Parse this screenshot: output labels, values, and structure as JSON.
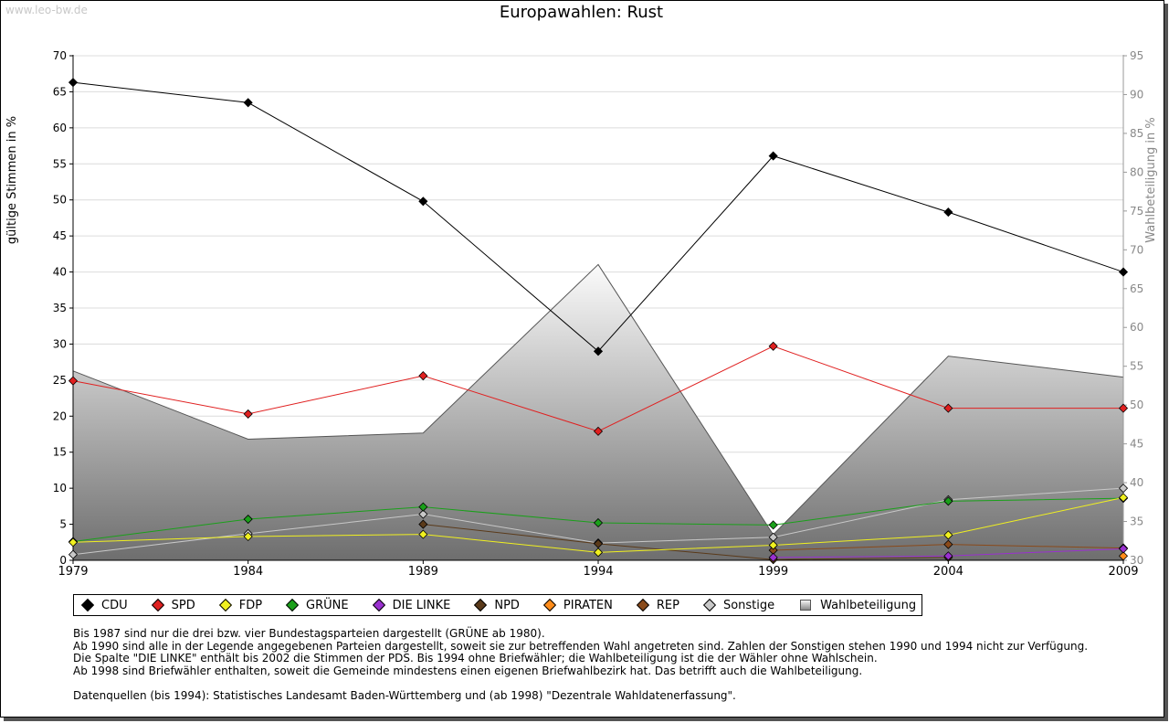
{
  "watermark": "www.leo-bw.de",
  "notes": [
    "Bis 1987 sind nur die drei bzw. vier Bundestagsparteien dargestellt (GRÜNE ab 1980).",
    "Ab 1990 sind alle in der Legende angegebenen Parteien dargestellt, soweit sie zur betreffenden Wahl angetreten sind. Zahlen der Sonstigen stehen 1990 und 1994 nicht zur Verfügung.",
    "Die Spalte \"DIE LINKE\" enthält bis 2002 die Stimmen der PDS. Bis 1994 ohne Briefwähler; die Wahlbeteiligung ist die der Wähler ohne Wahlschein.",
    "Ab 1998 sind Briefwähler enthalten, soweit die Gemeinde mindestens einen eigenen Briefwahlbezirk hat. Das betrifft auch die Wahlbeteiligung.",
    "",
    "Datenquellen (bis 1994): Statistisches Landesamt Baden-Württemberg und (ab 1998) \"Dezentrale Wahldatenerfassung\"."
  ],
  "chart_data": {
    "type": "line",
    "title": "Europawahlen: Rust",
    "ylabel": "gültige Stimmen in %",
    "y2label": "Wahlbeteiligung in %",
    "ylim": [
      0,
      70
    ],
    "y2lim": [
      30,
      95
    ],
    "yticks": [
      "0",
      "5",
      "10",
      "15",
      "20",
      "25",
      "30",
      "35",
      "40",
      "45",
      "50",
      "55",
      "60",
      "65",
      "70"
    ],
    "y2ticks": [
      "30",
      "35",
      "40",
      "45",
      "50",
      "55",
      "60",
      "65",
      "70",
      "75",
      "80",
      "85",
      "90",
      "95"
    ],
    "categories": [
      "1979",
      "1984",
      "1989",
      "1994",
      "1999",
      "2004",
      "2009"
    ],
    "series": [
      {
        "name": "CDU",
        "color": "#000000",
        "values": [
          66.3,
          63.5,
          49.8,
          29.0,
          56.1,
          48.3,
          40.0
        ]
      },
      {
        "name": "SPD",
        "color": "#e02020",
        "values": [
          24.9,
          20.3,
          25.6,
          17.9,
          29.7,
          21.1,
          21.1
        ]
      },
      {
        "name": "FDP",
        "color": "#f0f020",
        "values": [
          2.5,
          3.3,
          3.6,
          1.1,
          2.1,
          3.5,
          8.7
        ]
      },
      {
        "name": "GRÜNE",
        "color": "#1aa01a",
        "values": [
          2.6,
          5.7,
          7.4,
          5.2,
          4.9,
          8.2,
          8.6
        ]
      },
      {
        "name": "DIE LINKE",
        "color": "#9a30d0",
        "values": [
          null,
          null,
          null,
          null,
          0.4,
          0.6,
          1.6
        ]
      },
      {
        "name": "NPD",
        "color": "#5a3a1a",
        "values": [
          null,
          null,
          5.0,
          2.3,
          0.1,
          0.4,
          null
        ]
      },
      {
        "name": "PIRATEN",
        "color": "#ff8c1a",
        "values": [
          null,
          null,
          null,
          null,
          null,
          null,
          0.6
        ]
      },
      {
        "name": "REP",
        "color": "#8a4a1a",
        "values": [
          null,
          null,
          null,
          null,
          1.4,
          2.2,
          1.7
        ]
      },
      {
        "name": "Sonstige",
        "color": "#c8c8c8",
        "values": [
          0.8,
          3.7,
          6.4,
          2.4,
          3.2,
          8.4,
          10.0
        ]
      }
    ],
    "turnout": {
      "name": "Wahlbeteiligung",
      "values": [
        54.4,
        45.6,
        46.4,
        68.1,
        33.3,
        56.3,
        53.6
      ]
    }
  }
}
